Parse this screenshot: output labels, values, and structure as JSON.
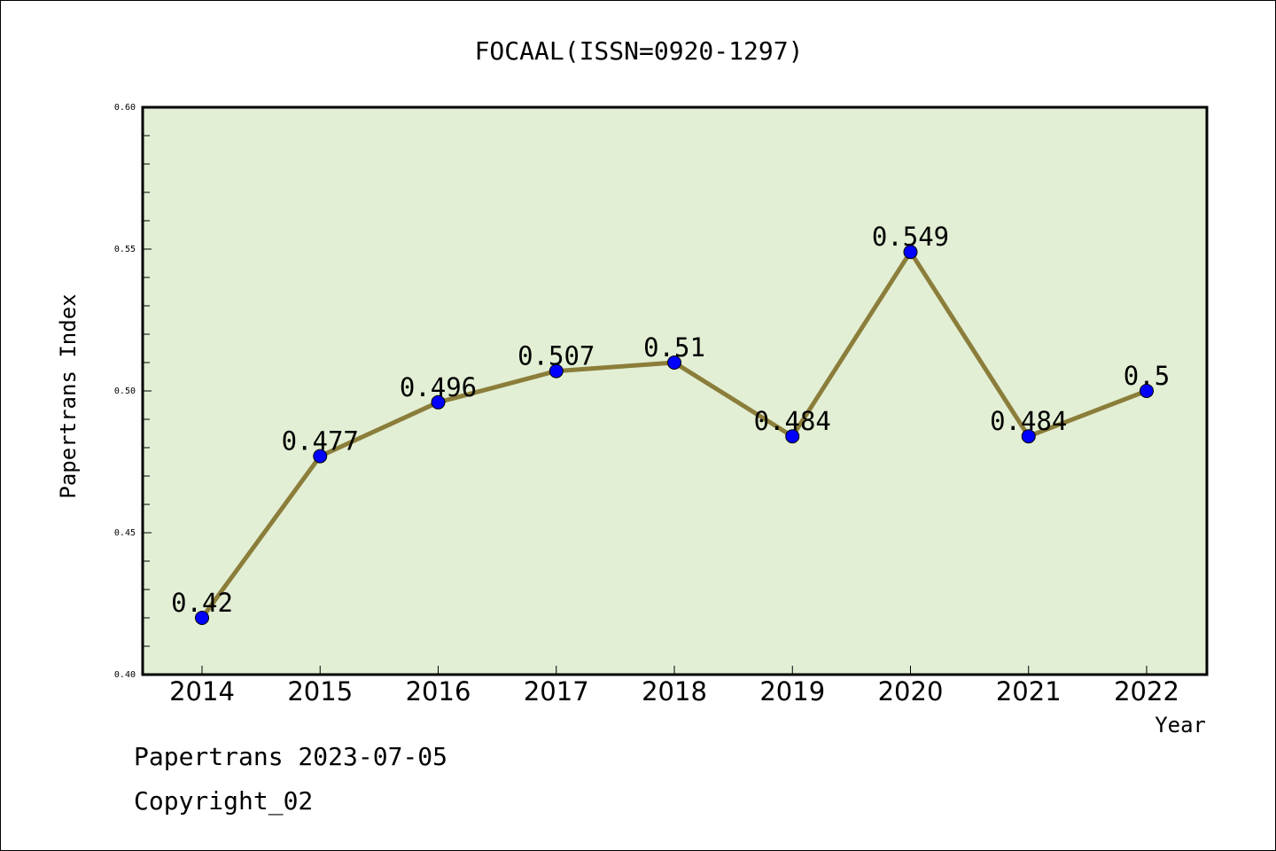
{
  "chart_data": {
    "type": "line",
    "title": "FOCAAL(ISSN=0920-1297)",
    "xlabel": "Year",
    "ylabel": "Papertrans Index",
    "categories": [
      "2014",
      "2015",
      "2016",
      "2017",
      "2018",
      "2019",
      "2020",
      "2021",
      "2022"
    ],
    "series": [
      {
        "values": [
          0.42,
          0.477,
          0.496,
          0.507,
          0.51,
          0.484,
          0.549,
          0.484,
          0.5
        ],
        "labels": [
          "0.42",
          "0.477",
          "0.496",
          "0.507",
          "0.51",
          "0.484",
          "0.549",
          "0.484",
          "0.5"
        ]
      }
    ],
    "ylim": [
      0.4,
      0.6
    ],
    "yticks": [
      "0.40",
      "0.45",
      "0.50",
      "0.55",
      "0.60"
    ],
    "grid": false,
    "colors": {
      "plot_background": "#e2efd4",
      "line": "#8b7d3a",
      "marker": "#0000ff"
    }
  },
  "footer": {
    "line1": "Papertrans 2023-07-05",
    "line2": "Copyright_02"
  }
}
